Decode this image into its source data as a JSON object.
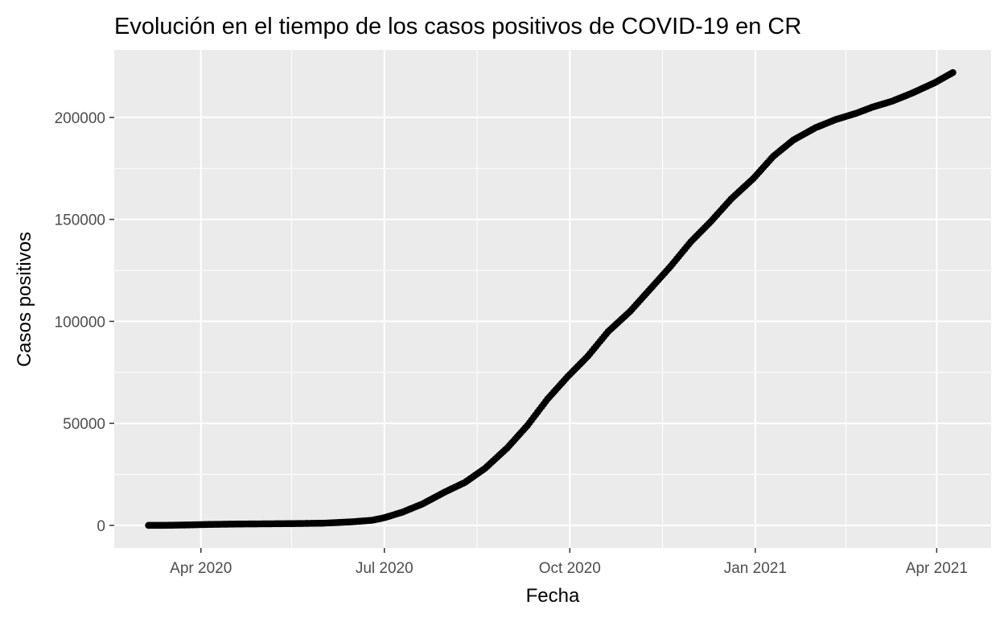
{
  "chart_data": {
    "type": "scatter",
    "title": "Evolución en el tiempo de los casos positivos de COVID-19 en CR",
    "xlabel": "Fecha",
    "ylabel": "Casos positivos",
    "x_ticks": [
      {
        "date": "2020-04-01",
        "label": "Apr 2020"
      },
      {
        "date": "2020-07-01",
        "label": "Jul 2020"
      },
      {
        "date": "2020-10-01",
        "label": "Oct 2020"
      },
      {
        "date": "2021-01-01",
        "label": "Jan 2021"
      },
      {
        "date": "2021-04-01",
        "label": "Apr 2021"
      }
    ],
    "x_minor_ticks": [
      "2020-05-16",
      "2020-08-16",
      "2020-11-16",
      "2021-02-15"
    ],
    "y_ticks": [
      0,
      50000,
      100000,
      150000,
      200000
    ],
    "y_minor_ticks": [
      25000,
      75000,
      125000,
      175000
    ],
    "xlim": [
      "2020-02-18",
      "2021-04-28"
    ],
    "ylim": [
      -11100,
      233100
    ],
    "grid": true,
    "colors": {
      "panel": "#ebebeb",
      "grid": "#ffffff",
      "points": "#000000"
    },
    "points": [
      [
        "2020-03-06",
        1
      ],
      [
        "2020-03-15",
        35
      ],
      [
        "2020-03-25",
        201
      ],
      [
        "2020-04-05",
        454
      ],
      [
        "2020-04-20",
        662
      ],
      [
        "2020-05-05",
        763
      ],
      [
        "2020-05-20",
        903
      ],
      [
        "2020-06-01",
        1084
      ],
      [
        "2020-06-15",
        1744
      ],
      [
        "2020-06-25",
        2515
      ],
      [
        "2020-07-01",
        3753
      ],
      [
        "2020-07-10",
        6485
      ],
      [
        "2020-07-20",
        10551
      ],
      [
        "2020-07-31",
        16344
      ],
      [
        "2020-08-10",
        21070
      ],
      [
        "2020-08-20",
        28000
      ],
      [
        "2020-08-31",
        38000
      ],
      [
        "2020-09-10",
        49000
      ],
      [
        "2020-09-20",
        62000
      ],
      [
        "2020-09-30",
        73000
      ],
      [
        "2020-10-10",
        83000
      ],
      [
        "2020-10-20",
        95000
      ],
      [
        "2020-10-31",
        105000
      ],
      [
        "2020-11-10",
        116000
      ],
      [
        "2020-11-20",
        127000
      ],
      [
        "2020-11-30",
        139000
      ],
      [
        "2020-12-10",
        149000
      ],
      [
        "2020-12-20",
        160000
      ],
      [
        "2020-12-31",
        170000
      ],
      [
        "2021-01-10",
        181000
      ],
      [
        "2021-01-20",
        189000
      ],
      [
        "2021-01-31",
        195000
      ],
      [
        "2021-02-10",
        199000
      ],
      [
        "2021-02-20",
        202000
      ],
      [
        "2021-02-28",
        205000
      ],
      [
        "2021-03-10",
        208000
      ],
      [
        "2021-03-20",
        212000
      ],
      [
        "2021-03-31",
        217000
      ],
      [
        "2021-04-09",
        222000
      ]
    ]
  }
}
